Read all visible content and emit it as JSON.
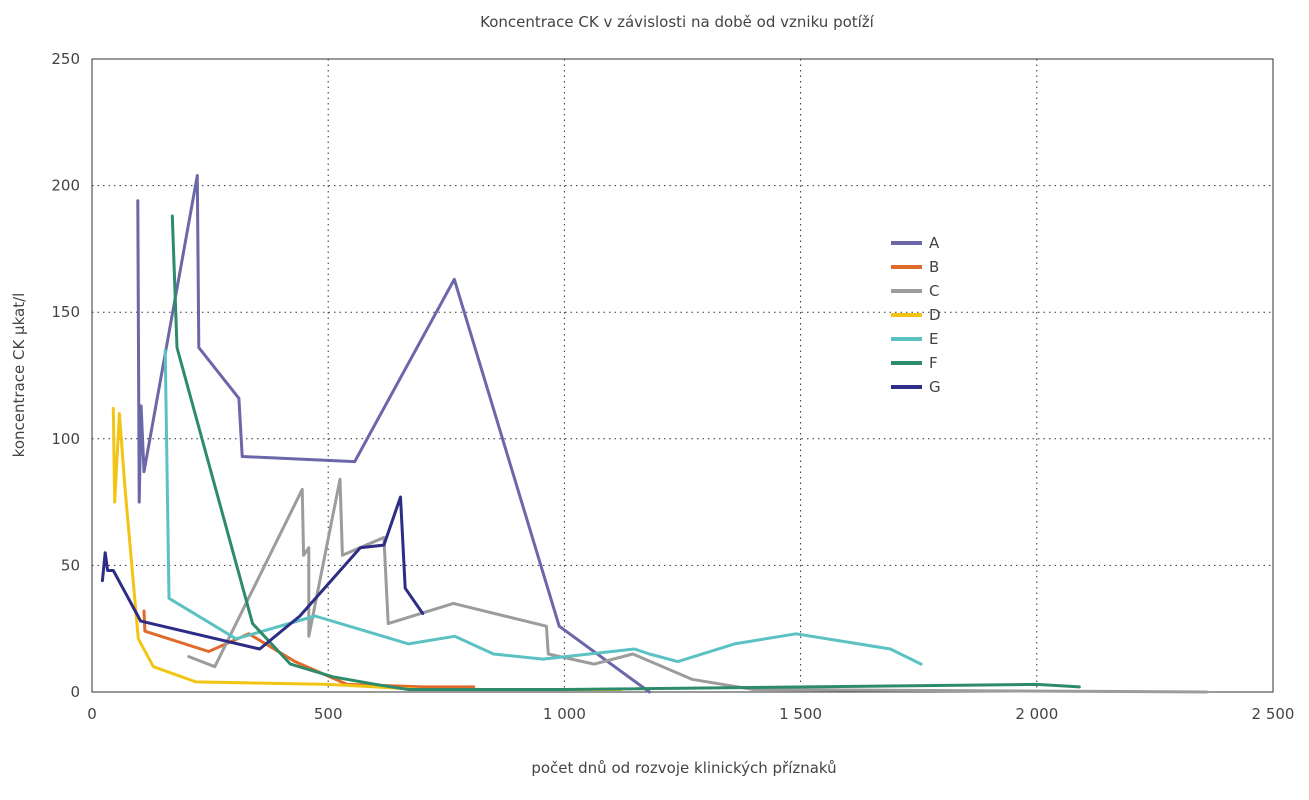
{
  "chart_data": {
    "type": "line",
    "title": "Koncentrace CK v závislosti na době od vzniku potíží",
    "xlabel": "počet dnů od rozvoje klinických příznaků",
    "ylabel": "koncentrace CK µkat/l",
    "xlim": [
      0,
      2500
    ],
    "ylim": [
      0,
      250
    ],
    "xticks": [
      0,
      500,
      1000,
      1500,
      2000,
      2500
    ],
    "xtick_labels": [
      "0",
      "500",
      "1 000",
      "1 500",
      "2 000",
      "2 500"
    ],
    "yticks": [
      0,
      50,
      100,
      150,
      200,
      250
    ],
    "ytick_labels": [
      "0",
      "50",
      "100",
      "150",
      "200",
      "250"
    ],
    "grid": true,
    "legend_position": "right",
    "series": [
      {
        "name": "A",
        "color": "#6b67a8",
        "points": [
          [
            97,
            194
          ],
          [
            100,
            75
          ],
          [
            104,
            113
          ],
          [
            110,
            87
          ],
          [
            223,
            204
          ],
          [
            226,
            136
          ],
          [
            311,
            116
          ],
          [
            318,
            93
          ],
          [
            556,
            91
          ],
          [
            767,
            163
          ],
          [
            989,
            26
          ],
          [
            1180,
            0
          ]
        ]
      },
      {
        "name": "B",
        "color": "#e06a2b",
        "points": [
          [
            110,
            32
          ],
          [
            112,
            24
          ],
          [
            247,
            16
          ],
          [
            332,
            23
          ],
          [
            430,
            12
          ],
          [
            540,
            3
          ],
          [
            700,
            2
          ],
          [
            808,
            2
          ]
        ]
      },
      {
        "name": "C",
        "color": "#9c9c9c",
        "points": [
          [
            205,
            14
          ],
          [
            260,
            10
          ],
          [
            445,
            80
          ],
          [
            448,
            54
          ],
          [
            459,
            57
          ],
          [
            459,
            22
          ],
          [
            525,
            84
          ],
          [
            530,
            54
          ],
          [
            618,
            61
          ],
          [
            627,
            27
          ],
          [
            765,
            35
          ],
          [
            962,
            26
          ],
          [
            966,
            15
          ],
          [
            1063,
            11
          ],
          [
            1145,
            15
          ],
          [
            1270,
            5
          ],
          [
            1400,
            1
          ],
          [
            2360,
            0
          ]
        ]
      },
      {
        "name": "D",
        "color": "#f2c515",
        "points": [
          [
            45,
            112
          ],
          [
            48,
            75
          ],
          [
            58,
            110
          ],
          [
            70,
            80
          ],
          [
            98,
            21
          ],
          [
            130,
            10
          ],
          [
            220,
            4
          ],
          [
            500,
            3
          ],
          [
            700,
            1
          ],
          [
            1120,
            1
          ]
        ]
      },
      {
        "name": "E",
        "color": "#5cc1c3",
        "points": [
          [
            155,
            135
          ],
          [
            163,
            37
          ],
          [
            305,
            21
          ],
          [
            472,
            30
          ],
          [
            670,
            19
          ],
          [
            768,
            22
          ],
          [
            850,
            15
          ],
          [
            955,
            13
          ],
          [
            1148,
            17
          ],
          [
            1180,
            15
          ],
          [
            1240,
            12
          ],
          [
            1360,
            19
          ],
          [
            1490,
            23
          ],
          [
            1690,
            17
          ],
          [
            1755,
            11
          ]
        ]
      },
      {
        "name": "F",
        "color": "#2e8b6a",
        "points": [
          [
            170,
            188
          ],
          [
            180,
            136
          ],
          [
            340,
            27
          ],
          [
            420,
            11
          ],
          [
            510,
            6
          ],
          [
            600,
            3
          ],
          [
            670,
            1
          ],
          [
            1000,
            1
          ],
          [
            2000,
            3
          ],
          [
            2090,
            2
          ]
        ]
      },
      {
        "name": "G",
        "color": "#2e2d85",
        "points": [
          [
            22,
            44
          ],
          [
            28,
            55
          ],
          [
            33,
            48
          ],
          [
            45,
            48
          ],
          [
            103,
            28
          ],
          [
            355,
            17
          ],
          [
            440,
            30
          ],
          [
            568,
            57
          ],
          [
            618,
            58
          ],
          [
            653,
            77
          ],
          [
            663,
            41
          ],
          [
            700,
            31
          ]
        ]
      }
    ]
  }
}
